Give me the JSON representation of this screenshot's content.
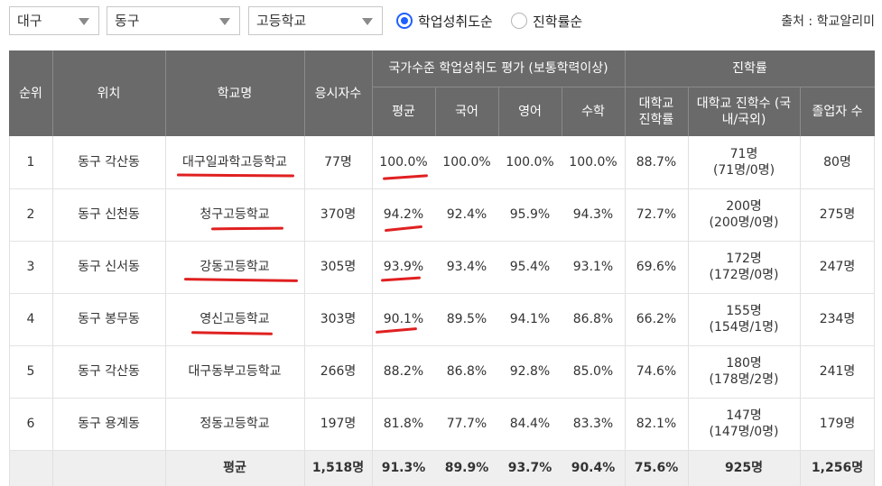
{
  "filters": {
    "region": "대구",
    "district": "동구",
    "school_type": "고등학교",
    "sort_options": [
      {
        "label": "학업성취도순",
        "checked": true
      },
      {
        "label": "진학률순",
        "checked": false
      }
    ],
    "source": "출처 : 학교알리미"
  },
  "table": {
    "headers": {
      "rank": "순위",
      "location": "위치",
      "school": "학교명",
      "examinees": "응시자수",
      "achievement_group": "국가수준 학업성취도 평가 (보통학력이상)",
      "avg": "평균",
      "korean": "국어",
      "english": "영어",
      "math": "수학",
      "advancement_group": "진학률",
      "univ_rate": "대학교 진학률",
      "univ_count": "대학교 진학수 (국내/국외)",
      "graduates": "졸업자 수"
    },
    "rows": [
      {
        "rank": "1",
        "location": "동구 각산동",
        "school": "대구일과학고등학교",
        "examinees": "77명",
        "avg": "100.0%",
        "korean": "100.0%",
        "english": "100.0%",
        "math": "100.0%",
        "univ_rate": "88.7%",
        "univ_count": "71명",
        "univ_detail": "(71명/0명)",
        "graduates": "80명"
      },
      {
        "rank": "2",
        "location": "동구 신천동",
        "school": "청구고등학교",
        "examinees": "370명",
        "avg": "94.2%",
        "korean": "92.4%",
        "english": "95.9%",
        "math": "94.3%",
        "univ_rate": "72.7%",
        "univ_count": "200명",
        "univ_detail": "(200명/0명)",
        "graduates": "275명"
      },
      {
        "rank": "3",
        "location": "동구 신서동",
        "school": "강동고등학교",
        "examinees": "305명",
        "avg": "93.9%",
        "korean": "93.4%",
        "english": "95.4%",
        "math": "93.1%",
        "univ_rate": "69.6%",
        "univ_count": "172명",
        "univ_detail": "(172명/0명)",
        "graduates": "247명"
      },
      {
        "rank": "4",
        "location": "동구 봉무동",
        "school": "영신고등학교",
        "examinees": "303명",
        "avg": "90.1%",
        "korean": "89.5%",
        "english": "94.1%",
        "math": "86.8%",
        "univ_rate": "66.2%",
        "univ_count": "155명",
        "univ_detail": "(154명/1명)",
        "graduates": "234명"
      },
      {
        "rank": "5",
        "location": "동구 각산동",
        "school": "대구동부고등학교",
        "examinees": "266명",
        "avg": "88.2%",
        "korean": "86.8%",
        "english": "92.8%",
        "math": "85.0%",
        "univ_rate": "74.6%",
        "univ_count": "180명",
        "univ_detail": "(178명/2명)",
        "graduates": "241명"
      },
      {
        "rank": "6",
        "location": "동구 용계동",
        "school": "정동고등학교",
        "examinees": "197명",
        "avg": "81.8%",
        "korean": "77.7%",
        "english": "84.4%",
        "math": "83.3%",
        "univ_rate": "82.1%",
        "univ_count": "147명",
        "univ_detail": "(147명/0명)",
        "graduates": "179명"
      }
    ],
    "average": {
      "label": "평균",
      "examinees": "1,518명",
      "avg": "91.3%",
      "korean": "89.9%",
      "english": "93.7%",
      "math": "90.4%",
      "univ_rate": "75.6%",
      "univ_count": "925명",
      "graduates": "1,256명"
    }
  },
  "colors": {
    "header_bg": "#6a6a6a",
    "radio_accent": "#1f5fff",
    "annotation_red": "#e02020"
  }
}
